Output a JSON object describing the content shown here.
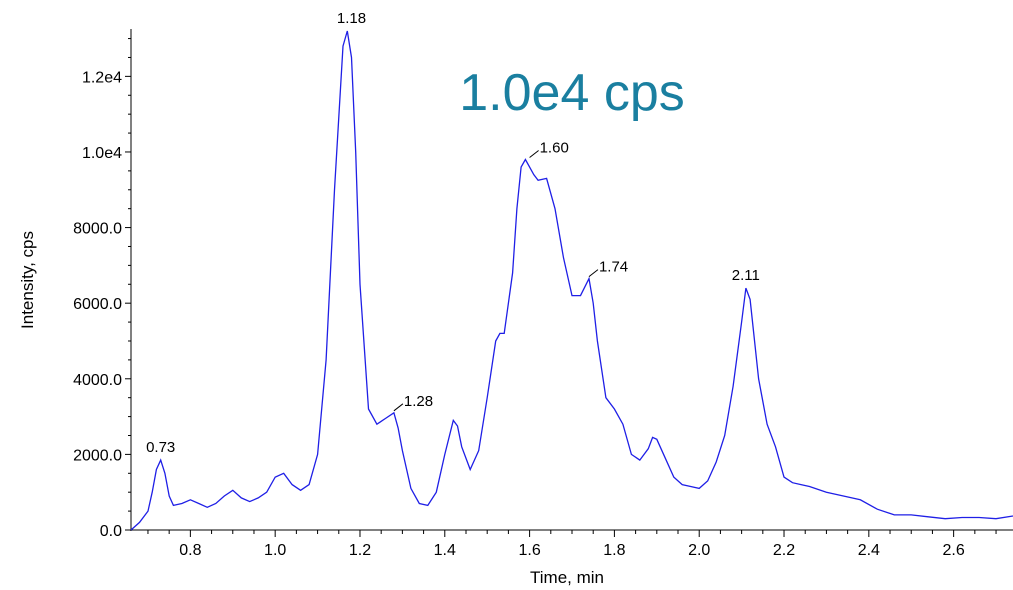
{
  "chart_data": {
    "type": "line",
    "title": "",
    "annotation": "1.0e4 cps",
    "annotation_color": "#1a7fa0",
    "line_color": "#1f1fe6",
    "xlabel": "Time, min",
    "ylabel": "Intensity, cps",
    "xlim": [
      0.66,
      2.74
    ],
    "ylim": [
      0,
      13200
    ],
    "x_ticks": [
      "0.8",
      "1.0",
      "1.2",
      "1.4",
      "1.6",
      "1.8",
      "2.0",
      "2.2",
      "2.4",
      "2.6"
    ],
    "y_ticks": [
      "0.0",
      "2000.0",
      "4000.0",
      "6000.0",
      "8000.0",
      "1.0e4",
      "1.2e4"
    ],
    "grid": false,
    "legend": "none",
    "peak_labels": [
      {
        "text": "0.73",
        "x": 0.73,
        "y": 1850,
        "leader": false
      },
      {
        "text": "1.18",
        "x": 1.18,
        "y": 13200,
        "leader": false
      },
      {
        "text": "1.28",
        "x": 1.28,
        "y": 3100,
        "leader": true
      },
      {
        "text": "1.60",
        "x": 1.6,
        "y": 9800,
        "leader": true
      },
      {
        "text": "1.74",
        "x": 1.74,
        "y": 6650,
        "leader": true
      },
      {
        "text": "2.11",
        "x": 2.11,
        "y": 6400,
        "leader": false
      }
    ],
    "series": [
      {
        "x": [
          0.66,
          0.68,
          0.7,
          0.71,
          0.72,
          0.73,
          0.74,
          0.75,
          0.76,
          0.78,
          0.8,
          0.82,
          0.84,
          0.86,
          0.88,
          0.9,
          0.92,
          0.94,
          0.96,
          0.98,
          1.0,
          1.02,
          1.04,
          1.06,
          1.08,
          1.1,
          1.12,
          1.14,
          1.16,
          1.17,
          1.18,
          1.19,
          1.2,
          1.22,
          1.24,
          1.26,
          1.28,
          1.29,
          1.3,
          1.32,
          1.34,
          1.36,
          1.38,
          1.4,
          1.42,
          1.43,
          1.44,
          1.46,
          1.48,
          1.5,
          1.52,
          1.53,
          1.54,
          1.56,
          1.57,
          1.58,
          1.59,
          1.6,
          1.61,
          1.62,
          1.64,
          1.66,
          1.68,
          1.7,
          1.72,
          1.74,
          1.75,
          1.76,
          1.78,
          1.8,
          1.82,
          1.84,
          1.86,
          1.88,
          1.89,
          1.9,
          1.92,
          1.94,
          1.96,
          1.98,
          2.0,
          2.02,
          2.04,
          2.06,
          2.08,
          2.1,
          2.11,
          2.12,
          2.14,
          2.16,
          2.18,
          2.2,
          2.22,
          2.24,
          2.26,
          2.3,
          2.34,
          2.38,
          2.42,
          2.46,
          2.5,
          2.54,
          2.58,
          2.62,
          2.66,
          2.7,
          2.74
        ],
        "y": [
          0,
          200,
          500,
          1000,
          1600,
          1850,
          1500,
          900,
          650,
          700,
          800,
          700,
          600,
          700,
          900,
          1050,
          850,
          750,
          850,
          1000,
          1400,
          1500,
          1200,
          1050,
          1200,
          2000,
          4500,
          9000,
          12800,
          13200,
          12500,
          10000,
          6500,
          3200,
          2800,
          2950,
          3100,
          2700,
          2100,
          1100,
          700,
          650,
          1000,
          2000,
          2900,
          2750,
          2200,
          1600,
          2100,
          3500,
          5000,
          5200,
          5200,
          6800,
          8500,
          9600,
          9800,
          9600,
          9400,
          9250,
          9300,
          8500,
          7200,
          6200,
          6200,
          6650,
          6000,
          5000,
          3500,
          3200,
          2800,
          2000,
          1850,
          2150,
          2450,
          2400,
          1900,
          1400,
          1200,
          1150,
          1100,
          1300,
          1800,
          2500,
          3800,
          5500,
          6400,
          6100,
          4000,
          2800,
          2200,
          1400,
          1250,
          1200,
          1150,
          1000,
          900,
          800,
          550,
          400,
          400,
          350,
          300,
          330,
          330,
          300,
          370
        ]
      }
    ]
  }
}
